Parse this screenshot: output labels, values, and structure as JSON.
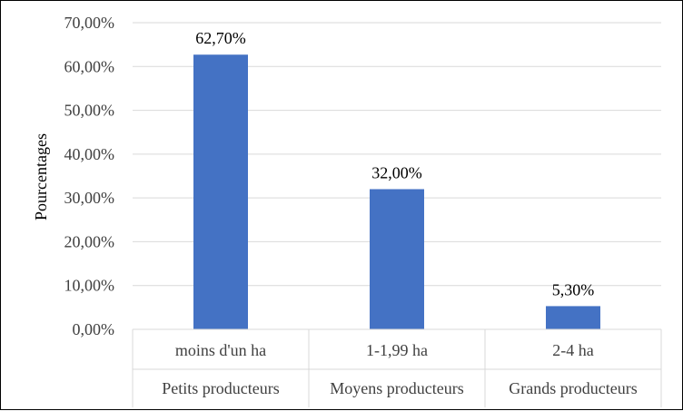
{
  "chart_data": {
    "type": "bar",
    "ylabel": "Pourcentages",
    "ylim": [
      0,
      70
    ],
    "y_ticks": [
      "0,00%",
      "10,00%",
      "20,00%",
      "30,00%",
      "40,00%",
      "50,00%",
      "60,00%",
      "70,00%"
    ],
    "grid": true,
    "categories": [
      {
        "label": "moins d'un ha",
        "group": "Petits producteurs"
      },
      {
        "label": "1-1,99 ha",
        "group": "Moyens producteurs"
      },
      {
        "label": "2-4 ha",
        "group": "Grands producteurs"
      }
    ],
    "values": [
      62.7,
      32.0,
      5.3
    ],
    "data_labels": [
      "62,70%",
      "32,00%",
      "5,30%"
    ],
    "bar_color": "#4472C4"
  }
}
